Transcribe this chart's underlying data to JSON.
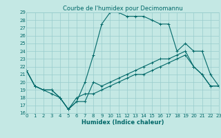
{
  "title": "Courbe de l'humidex pour Decimomannu",
  "xlabel": "Humidex (Indice chaleur)",
  "bg_color": "#c4e8e4",
  "grid_color": "#98cccc",
  "line_color": "#006868",
  "ylim": [
    16,
    29
  ],
  "xlim": [
    0,
    23
  ],
  "yticks": [
    16,
    17,
    18,
    19,
    20,
    21,
    22,
    23,
    24,
    25,
    26,
    27,
    28,
    29
  ],
  "xticks": [
    0,
    1,
    2,
    3,
    4,
    5,
    6,
    7,
    8,
    9,
    10,
    11,
    12,
    13,
    14,
    15,
    16,
    17,
    18,
    19,
    20,
    21,
    22,
    23
  ],
  "line1_x": [
    0,
    1,
    2,
    3,
    4,
    5,
    6,
    7,
    8,
    9,
    10,
    11,
    12,
    13,
    14,
    15,
    16,
    17,
    18,
    19,
    20,
    21,
    22,
    23
  ],
  "line1_y": [
    21.5,
    19.5,
    19,
    19,
    18,
    16.5,
    17.5,
    17.5,
    20.0,
    19.5,
    20,
    20.5,
    21,
    21.5,
    22,
    22.5,
    23,
    23,
    23.5,
    24,
    22,
    21,
    19.5,
    19.5
  ],
  "line2_x": [
    0,
    1,
    2,
    3,
    4,
    5,
    6,
    7,
    8,
    9,
    10,
    11,
    12,
    13,
    14,
    15,
    16,
    17,
    18,
    19,
    20,
    21,
    22,
    23
  ],
  "line2_y": [
    21.5,
    19.5,
    19,
    19,
    18,
    16.5,
    17.5,
    20.0,
    23.5,
    27.5,
    29,
    29,
    28.5,
    28.5,
    28.5,
    28,
    27.5,
    27.5,
    24,
    25,
    24,
    24,
    21,
    19.5
  ],
  "line3_x": [
    0,
    1,
    2,
    3,
    4,
    5,
    6,
    7,
    8,
    9,
    10,
    11,
    12,
    13,
    14,
    15,
    16,
    17,
    18,
    19,
    20,
    21,
    22,
    23
  ],
  "line3_y": [
    21.5,
    19.5,
    19,
    18.5,
    18,
    16.5,
    18,
    18.5,
    18.5,
    19,
    19.5,
    20,
    20.5,
    21,
    21,
    21.5,
    22,
    22.5,
    23,
    23.5,
    22,
    21,
    19.5,
    19.5
  ],
  "marker": "+",
  "marker_size": 3,
  "linewidth": 0.8,
  "title_fontsize": 6,
  "axis_fontsize": 6,
  "tick_fontsize": 5
}
